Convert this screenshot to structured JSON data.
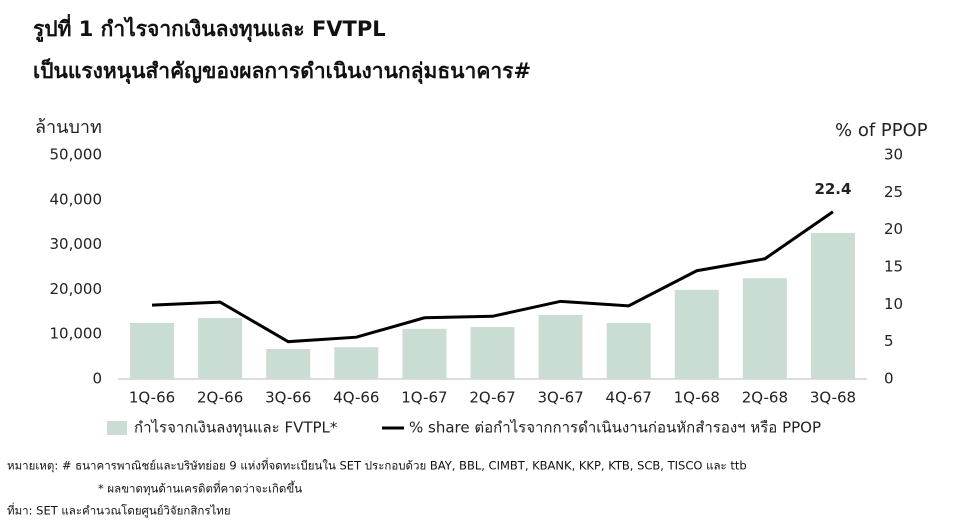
{
  "chart_data": {
    "type": "bar-line",
    "title": [
      "รูปที่ 1 กำไรจากเงินลงทุนและ FVTPL",
      "เป็นแรงหนุนสำคัญของผลการดำเนินงานกลุ่มธนาคาร#"
    ],
    "y_label": "ล้านบาท",
    "y2_label": "% of PPOP",
    "categories": [
      "1Q-66",
      "2Q-66",
      "3Q-66",
      "4Q-66",
      "1Q-67",
      "2Q-67",
      "3Q-67",
      "4Q-67",
      "1Q-68",
      "2Q-68",
      "3Q-68"
    ],
    "series": [
      {
        "name": "กำไรจากเงินลงทุนและ FVTPL*",
        "type": "bar",
        "color": "#c9ddd2",
        "values": [
          12500,
          13600,
          6700,
          7100,
          11200,
          11600,
          14300,
          12500,
          19900,
          22500,
          32600
        ]
      },
      {
        "name": "% share ต่อกำไรจากการดำเนินงานก่อนหักสำรองฯ หรือ PPOP",
        "type": "line",
        "axis": "y2",
        "color": "#000000",
        "label": "last",
        "values": [
          9.9,
          10.3,
          5.0,
          5.6,
          8.2,
          8.4,
          10.4,
          9.8,
          14.5,
          16.1,
          22.4
        ]
      }
    ],
    "ylim": [
      0,
      50000
    ],
    "yticks": [
      0,
      {
        "value": 10000,
        "label": "10,000"
      },
      {
        "value": 20000,
        "label": "20,000"
      },
      {
        "value": 30000,
        "label": "30,000"
      },
      {
        "value": 40000,
        "label": "40,000"
      },
      {
        "value": 50000,
        "label": "50,000"
      }
    ],
    "y2lim": [
      0,
      30
    ],
    "y2ticks": [
      0,
      5,
      10,
      15,
      20,
      25,
      30
    ],
    "notes": [
      "หมายเหตุ:  # ธนาคารพาณิชย์และบริษัทย่อย 9 แห่งที่จดทะเบียนใน SET ประกอบด้วย BAY, BBL, CIMBT, KBANK, KKP, KTB, SCB, TISCO และ ttb",
      "* ผลขาดทุนด้านเครดิตที่คาดว่าจะเกิดขึ้น",
      "ที่มา: SET และคำนวณโดยศูนย์วิจัยกสิกรไทย"
    ]
  }
}
